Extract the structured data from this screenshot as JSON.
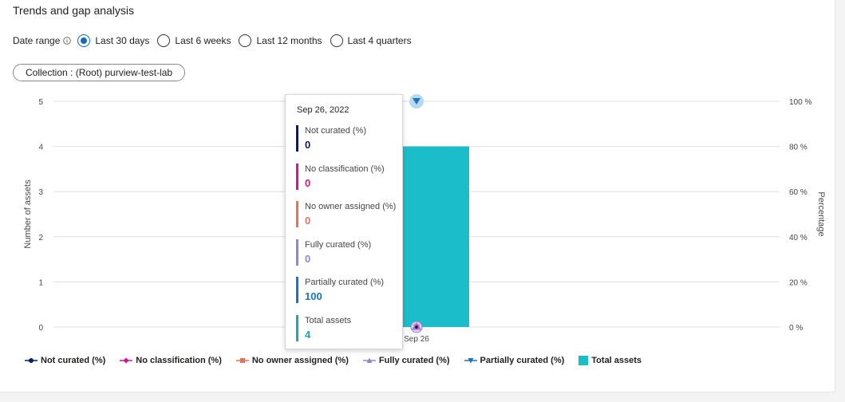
{
  "title": "Trends and gap analysis",
  "date_range": {
    "label": "Date range",
    "options": [
      {
        "label": "Last 30 days",
        "selected": true
      },
      {
        "label": "Last 6 weeks",
        "selected": false
      },
      {
        "label": "Last 12 months",
        "selected": false
      },
      {
        "label": "Last 4 quarters",
        "selected": false
      }
    ]
  },
  "collection_filter": "Collection : (Root) purview-test-lab",
  "chart_data": {
    "type": "bar",
    "categories": [
      "Sep 26"
    ],
    "ylabel": "Number of assets",
    "y2label": "Percentage",
    "ylim": [
      0,
      5
    ],
    "y_ticks": [
      "5",
      "4",
      "3",
      "2",
      "1",
      "0"
    ],
    "y2lim": [
      0,
      100
    ],
    "y2_ticks": [
      "100 %",
      "80 %",
      "60 %",
      "40 %",
      "20 %",
      "0 %"
    ],
    "grid": true,
    "legend_position": "bottom",
    "series": [
      {
        "name": "Not curated (%)",
        "axis": "percentage",
        "values": [
          0
        ],
        "color": "#0b1b6b",
        "marker": "circle"
      },
      {
        "name": "No classification (%)",
        "axis": "percentage",
        "values": [
          0
        ],
        "color": "#d4148f",
        "marker": "diamond"
      },
      {
        "name": "No owner assigned (%)",
        "axis": "percentage",
        "values": [
          0
        ],
        "color": "#e8715a",
        "marker": "square"
      },
      {
        "name": "Fully curated (%)",
        "axis": "percentage",
        "values": [
          0
        ],
        "color": "#9183d6",
        "marker": "triangle-up"
      },
      {
        "name": "Partially curated (%)",
        "axis": "percentage",
        "values": [
          100
        ],
        "color": "#1973c6",
        "marker": "triangle-down"
      },
      {
        "name": "Total assets",
        "axis": "count",
        "values": [
          4
        ],
        "color": "#1bbdca",
        "marker": "bar"
      }
    ]
  },
  "tooltip": {
    "date": "Sep 26, 2022",
    "items": [
      {
        "label": "Not curated (%)",
        "value": "0",
        "color": "#0b1b6b"
      },
      {
        "label": "No classification (%)",
        "value": "0",
        "color": "#d4148f"
      },
      {
        "label": "No owner assigned (%)",
        "value": "0",
        "color": "#e8715a"
      },
      {
        "label": "Fully curated (%)",
        "value": "0",
        "color": "#9183d6"
      },
      {
        "label": "Partially curated (%)",
        "value": "100",
        "color": "#1973c6"
      },
      {
        "label": "Total assets",
        "value": "4",
        "color": "#1ba7b3"
      }
    ]
  },
  "colors": {
    "accent": "#0f6cbd",
    "bar": "#1bbdca"
  }
}
